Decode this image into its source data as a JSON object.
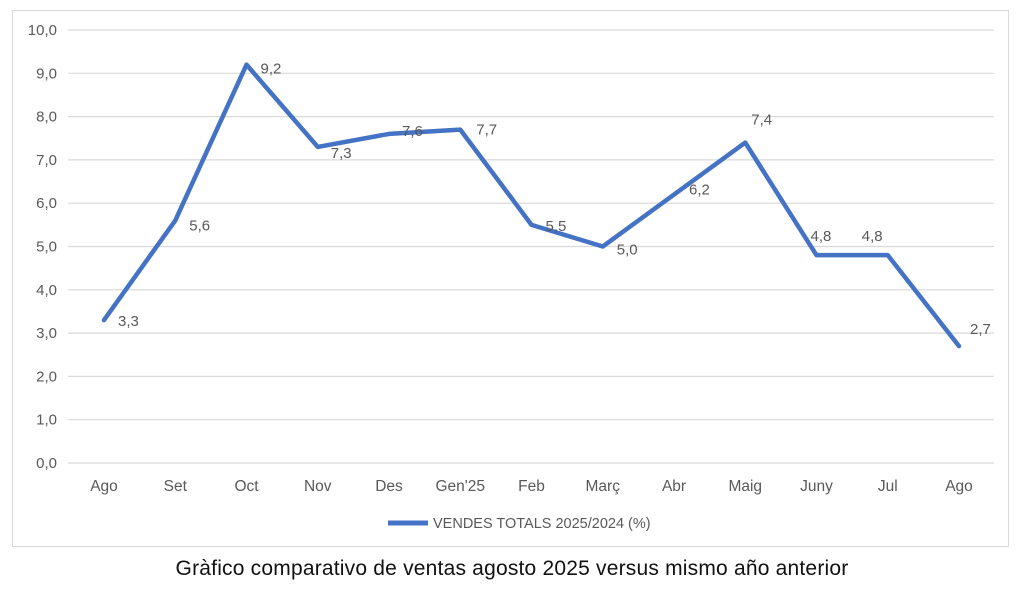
{
  "page": {
    "caption": "Gràfico comparativo de ventas agosto 2025 versus mismo año anterior"
  },
  "chart_data": {
    "type": "line",
    "title": "",
    "categories": [
      "Ago",
      "Set",
      "Oct",
      "Nov",
      "Des",
      "Gen'25",
      "Feb",
      "Març",
      "Abr",
      "Maig",
      "Juny",
      "Jul",
      "Ago"
    ],
    "series": [
      {
        "name": "VENDES TOTALS 2025/2024 (%)",
        "values": [
          3.3,
          5.6,
          9.2,
          7.3,
          7.6,
          7.7,
          5.5,
          5.0,
          6.2,
          7.4,
          4.8,
          4.8,
          2.7
        ],
        "labels": [
          "3,3",
          "5,6",
          "9,2",
          "7,3",
          "7,6",
          "7,7",
          "5,5",
          "5,0",
          "6,2",
          "7,4",
          "4,8",
          "4,8",
          "2,7"
        ],
        "color": "#4472C4"
      }
    ],
    "ylim": [
      0,
      10
    ],
    "ytick_step": 1,
    "ytick_labels": [
      "0,0",
      "1,0",
      "2,0",
      "3,0",
      "4,0",
      "5,0",
      "6,0",
      "7,0",
      "8,0",
      "9,0",
      "10,0"
    ],
    "grid": true,
    "legend_position": "bottom",
    "colors": {
      "line": "#4472C4",
      "gridline": "#d9d9d9",
      "axis_text": "#595959",
      "data_label_text": "#595959",
      "legend_text": "#595959",
      "chart_border": "#d9d9d9"
    }
  }
}
